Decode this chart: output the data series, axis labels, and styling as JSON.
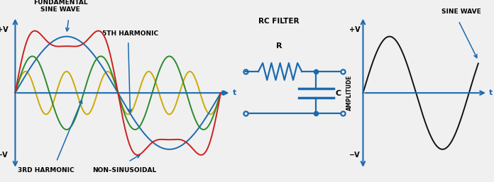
{
  "bg_color": "#f0f0f0",
  "blue_color": "#1a6ab0",
  "red_color": "#cc2020",
  "green_color": "#2a8a2a",
  "yellow_color": "#ccaa00",
  "dark_color": "#111111",
  "label_fund": "FUNDAMENTAL\nSINE WAVE",
  "label_5th": "5TH HARMONIC",
  "label_3rd": "3RD HARMONIC",
  "label_non": "NON–SINUSOIDAL",
  "label_rc": "RC FILTER",
  "label_r": "R",
  "label_c": "C",
  "label_sine": "SINE WAVE",
  "label_amplitude": "AMPLITUDE",
  "label_pV1": "+V",
  "label_mV1": "−V",
  "label_t1": "t",
  "label_pV2": "+V",
  "label_mV2": "−V",
  "label_t2": "t",
  "fig_w": 6.96,
  "fig_h": 2.57,
  "dpi": 100
}
